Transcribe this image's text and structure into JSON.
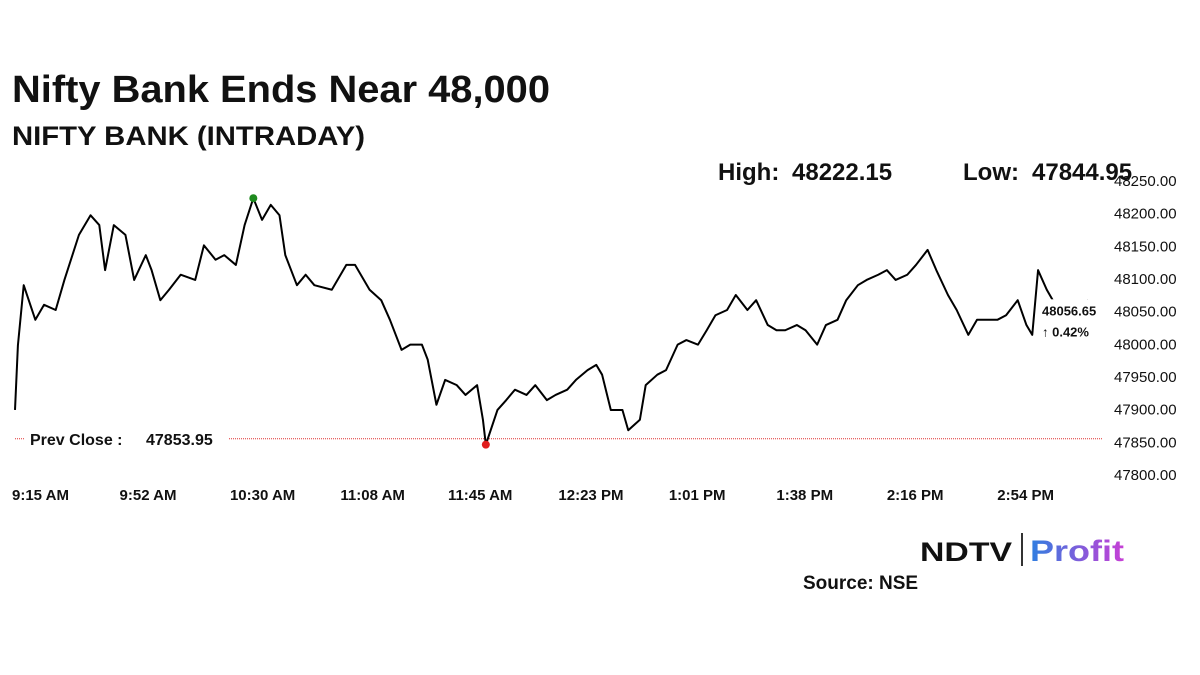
{
  "chart_data": {
    "type": "line",
    "title": "Nifty Bank Ends Near 48,000",
    "subtitle": "NIFTY BANK (INTRADAY)",
    "high": {
      "label": "High:",
      "value": 48222.15
    },
    "low": {
      "label": "Low:",
      "value": 47844.95
    },
    "prev_close": {
      "label": "Prev Close :",
      "value": 47853.95,
      "color": "#e03030"
    },
    "change": {
      "value": 0.42,
      "label": "↑ 0.42%",
      "color": "#1e8a1e"
    },
    "high_color": "#1e8a1e",
    "low_color": "#e01e1e",
    "last_color": "#1a2a9a",
    "x": [
      "09:15",
      "09:16",
      "09:18",
      "09:22",
      "09:25",
      "09:29",
      "09:32",
      "09:37",
      "09:41",
      "09:44",
      "09:46",
      "09:49",
      "09:53",
      "09:56",
      "10:00",
      "10:02",
      "10:05",
      "10:08",
      "10:12",
      "10:17",
      "10:20",
      "10:24",
      "10:27",
      "10:31",
      "10:34",
      "10:37",
      "10:40",
      "10:43",
      "10:46",
      "10:48",
      "10:52",
      "10:55",
      "10:58",
      "11:04",
      "11:09",
      "11:12",
      "11:17",
      "11:21",
      "11:24",
      "11:28",
      "11:31",
      "11:35",
      "11:37",
      "11:40",
      "11:43",
      "11:47",
      "11:50",
      "11:54",
      "11:56",
      "11:57",
      "12:01",
      "12:04",
      "12:07",
      "12:11",
      "12:14",
      "12:18",
      "12:21",
      "12:25",
      "12:28",
      "12:32",
      "12:35",
      "12:37",
      "12:40",
      "12:44",
      "12:46",
      "12:50",
      "12:52",
      "12:56",
      "12:59",
      "13:03",
      "13:06",
      "13:10",
      "13:13",
      "13:16",
      "13:20",
      "13:23",
      "13:27",
      "13:30",
      "13:34",
      "13:37",
      "13:40",
      "13:44",
      "13:47",
      "13:51",
      "13:54",
      "13:58",
      "14:01",
      "14:05",
      "14:08",
      "14:12",
      "14:15",
      "14:18",
      "14:22",
      "14:25",
      "14:29",
      "14:32",
      "14:36",
      "14:39",
      "14:43",
      "14:46",
      "14:50",
      "14:53",
      "14:56",
      "15:00",
      "15:03",
      "15:05",
      "15:07",
      "15:10",
      "15:14",
      "15:17",
      "15:20",
      "15:24",
      "15:27",
      "15:29"
    ],
    "series": [
      {
        "color": "#000000",
        "values": [
          47898,
          47997,
          48089,
          48036,
          48059,
          48051,
          48097,
          48166,
          48196,
          48181,
          48112,
          48181,
          48166,
          48097,
          48135,
          48112,
          48066,
          48082,
          48105,
          48097,
          48150,
          48128,
          48135,
          48120,
          48181,
          48222.15,
          48189,
          48212,
          48196,
          48135,
          48089,
          48105,
          48089,
          48082,
          48120,
          48120,
          48082,
          48066,
          48036,
          47990,
          47998,
          47998,
          47975,
          47906,
          47944,
          47936,
          47921,
          47936,
          47883,
          47844.95,
          47898,
          47913,
          47929,
          47921,
          47936,
          47913,
          47921,
          47929,
          47944,
          47959,
          47967,
          47952,
          47898,
          47898,
          47867,
          47883,
          47936,
          47952,
          47959,
          47998,
          48005,
          47998,
          48020,
          48043,
          48051,
          48074,
          48051,
          48066,
          48028,
          48020,
          48020,
          48028,
          48020,
          47998,
          48028,
          48036,
          48066,
          48089,
          48097,
          48105,
          48112,
          48097,
          48105,
          48120,
          48143,
          48112,
          48074,
          48051,
          48013,
          48036,
          48036,
          48036,
          48043,
          48066,
          48028,
          48013,
          48112,
          48082,
          48051,
          48059,
          48051,
          48066,
          48059,
          48056.65
        ]
      }
    ],
    "xlim": [
      "09:15",
      "15:29"
    ],
    "xticks": [
      {
        "value": "09:15",
        "label": "9:15 AM"
      },
      {
        "value": "09:52",
        "label": "9:52 AM"
      },
      {
        "value": "10:30",
        "label": "10:30 AM"
      },
      {
        "value": "11:08",
        "label": "11:08 AM"
      },
      {
        "value": "11:45",
        "label": "11:45 AM"
      },
      {
        "value": "12:23",
        "label": "12:23 PM"
      },
      {
        "value": "13:01",
        "label": "1:01 PM"
      },
      {
        "value": "13:38",
        "label": "1:38 PM"
      },
      {
        "value": "14:16",
        "label": "2:16 PM"
      },
      {
        "value": "14:54",
        "label": "2:54 PM"
      }
    ],
    "ylim": [
      47800,
      48250
    ],
    "yticks": [
      {
        "value": 47800,
        "label": "47800.00"
      },
      {
        "value": 47850,
        "label": "47850.00"
      },
      {
        "value": 47900,
        "label": "47900.00"
      },
      {
        "value": 47950,
        "label": "47950.00"
      },
      {
        "value": 48000,
        "label": "48000.00"
      },
      {
        "value": 48050,
        "label": "48050.00"
      },
      {
        "value": 48100,
        "label": "48100.00"
      },
      {
        "value": 48150,
        "label": "48150.00"
      },
      {
        "value": 48200,
        "label": "48200.00"
      },
      {
        "value": 48250,
        "label": "48250.00"
      }
    ],
    "grid": false
  },
  "logo": {
    "brand": "NDTV",
    "product": "Profit"
  },
  "source": "Source: NSE"
}
